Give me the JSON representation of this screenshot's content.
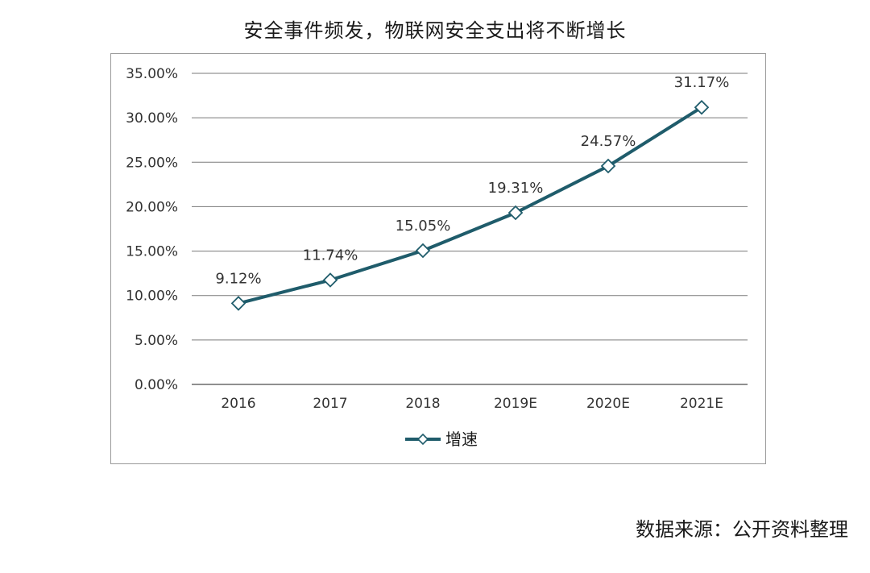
{
  "title": "安全事件频发，物联网安全支出将不断增长",
  "source": "数据来源：公开资料整理",
  "chart_data": {
    "type": "line",
    "categories": [
      "2016",
      "2017",
      "2018",
      "2019E",
      "2020E",
      "2021E"
    ],
    "series": [
      {
        "name": "增速",
        "values": [
          9.12,
          11.74,
          15.05,
          19.31,
          24.57,
          31.17
        ],
        "labels": [
          "9.12%",
          "11.74%",
          "15.05%",
          "19.31%",
          "24.57%",
          "31.17%"
        ],
        "color": "#1f5c6b",
        "marker": "diamond-open"
      }
    ],
    "ylim": [
      0,
      35
    ],
    "yticks": [
      "0.00%",
      "5.00%",
      "10.00%",
      "15.00%",
      "20.00%",
      "25.00%",
      "30.00%",
      "35.00%"
    ],
    "grid": true,
    "legend": "bottom"
  },
  "colors": {
    "line": "#1f5c6b",
    "grid": "#7a7a7a",
    "text": "#333333"
  }
}
